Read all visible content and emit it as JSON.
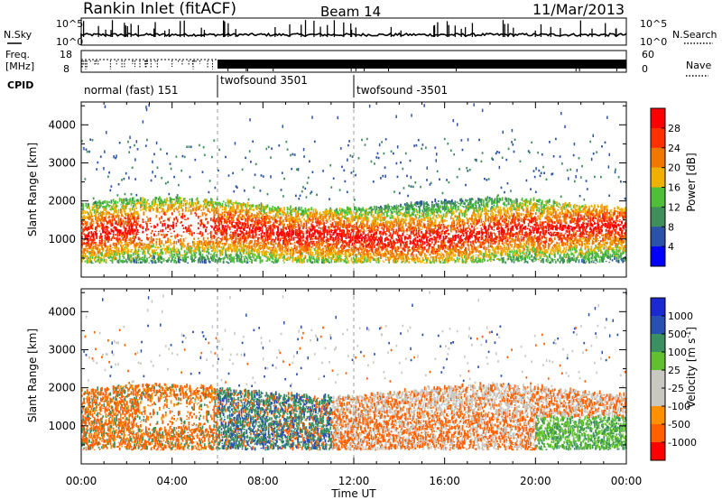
{
  "header": {
    "title": "Rankin Inlet (fitACF)",
    "beam": "Beam 14",
    "date": "11/Mar/2013"
  },
  "left_labels": {
    "nsky": "N.Sky",
    "freq": "Freq.",
    "mhz": "[MHz]",
    "cpid": "CPID"
  },
  "right_labels": {
    "nsearch": "N.Search",
    "nave": "Nave"
  },
  "noise_panel": {
    "left_ticks": [
      "10^5",
      "10^0"
    ],
    "right_ticks": [
      "10^5",
      "10^0"
    ]
  },
  "freq_panel": {
    "left_ticks": [
      "18",
      "8"
    ],
    "right_ticks": [
      "60",
      "0"
    ]
  },
  "cpid_segments": [
    {
      "label": "normal (fast) 151",
      "start_hour": 0,
      "end_hour": 6
    },
    {
      "label": "twofsound 3501",
      "start_hour": 6,
      "end_hour": 12
    },
    {
      "label": "twofsound -3501",
      "start_hour": 12,
      "end_hour": 24
    }
  ],
  "colors": {
    "power": [
      "#0000ff",
      "#2a52a8",
      "#3f8f5a",
      "#4fbf3a",
      "#f0b000",
      "#f07800",
      "#ff3000",
      "#ff0000"
    ],
    "velocity": [
      "#ff0000",
      "#ff6000",
      "#ff9000",
      "#c8c8c0",
      "#c8c8c0",
      "#60c030",
      "#3a9060",
      "#2850b0",
      "#1a2ad0"
    ]
  },
  "chart_data": [
    {
      "type": "heatmap",
      "name": "power",
      "ylabel": "Slant Range [km]",
      "y_ticks": [
        "1000",
        "2000",
        "3000",
        "4000"
      ],
      "ylim": [
        0,
        4600
      ],
      "x_range_hours": [
        0,
        24
      ],
      "colorbar_label": "Power [dB]",
      "colorbar_ticks": [
        "4",
        "8",
        "12",
        "16",
        "20",
        "24",
        "28"
      ],
      "colorbar_range": [
        0,
        32
      ]
    },
    {
      "type": "heatmap",
      "name": "velocity",
      "ylabel": "Slant Range [km]",
      "y_ticks": [
        "1000",
        "2000",
        "3000",
        "4000"
      ],
      "ylim": [
        0,
        4600
      ],
      "x_range_hours": [
        0,
        24
      ],
      "colorbar_label": "Velocity",
      "colorbar_unit": "[m s",
      "colorbar_unit_sup": "-1",
      "colorbar_unit_end": "]",
      "colorbar_ticks": [
        "-1000",
        "-500",
        "-100",
        "-25",
        "25",
        "100",
        "500",
        "1000"
      ]
    }
  ],
  "time_axis": {
    "ticks": [
      "00:00",
      "04:00",
      "08:00",
      "12:00",
      "16:00",
      "20:00",
      "00:00"
    ],
    "label": "Time UT"
  }
}
